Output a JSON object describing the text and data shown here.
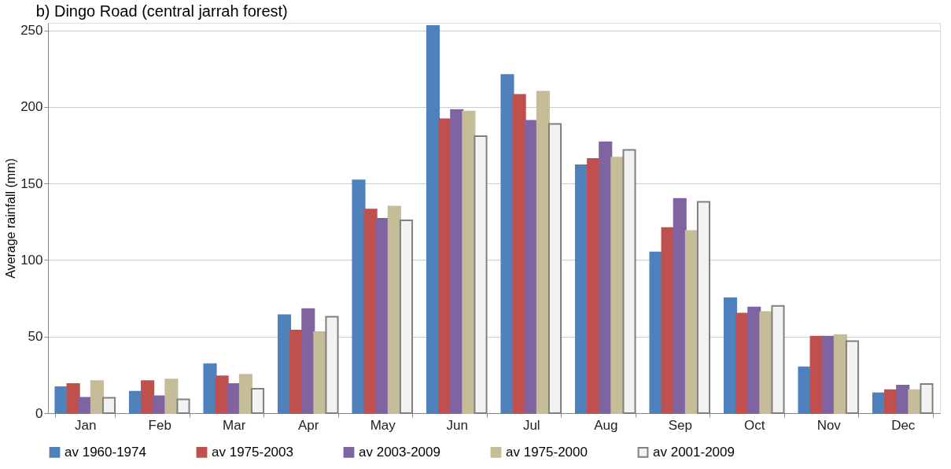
{
  "chart_data": {
    "type": "bar",
    "title": "b) Dingo Road (central jarrah forest)",
    "ylabel": "Average rainfall (mm)",
    "categories": [
      "Jan",
      "Feb",
      "Mar",
      "Apr",
      "May",
      "Jun",
      "Jul",
      "Aug",
      "Sep",
      "Oct",
      "Nov",
      "Dec"
    ],
    "series": [
      {
        "name": "av 1960-1974",
        "color": "#4f81bd",
        "values": [
          17,
          14,
          32,
          64,
          152,
          253,
          221,
          162,
          105,
          75,
          30,
          13
        ]
      },
      {
        "name": "av 1975-2003",
        "color": "#c0504d",
        "values": [
          19,
          21,
          24,
          54,
          133,
          192,
          208,
          166,
          121,
          65,
          50,
          15
        ]
      },
      {
        "name": "av 2003-2009",
        "color": "#8064a2",
        "values": [
          10,
          11,
          19,
          68,
          127,
          198,
          191,
          177,
          140,
          69,
          50,
          18
        ]
      },
      {
        "name": "av 1975-2000",
        "color": "#c4bd97",
        "values": [
          21,
          22,
          25,
          53,
          135,
          197,
          210,
          167,
          119,
          66,
          51,
          15
        ]
      },
      {
        "name": "av 2001-2009",
        "color": "#f2f2f2",
        "values": [
          10,
          9,
          16,
          63,
          126,
          181,
          189,
          172,
          138,
          70,
          47,
          19
        ]
      }
    ],
    "ylim": [
      0,
      255
    ],
    "yticks": [
      0,
      50,
      100,
      150,
      200,
      250
    ],
    "grid": "y",
    "legend": "bottom"
  }
}
